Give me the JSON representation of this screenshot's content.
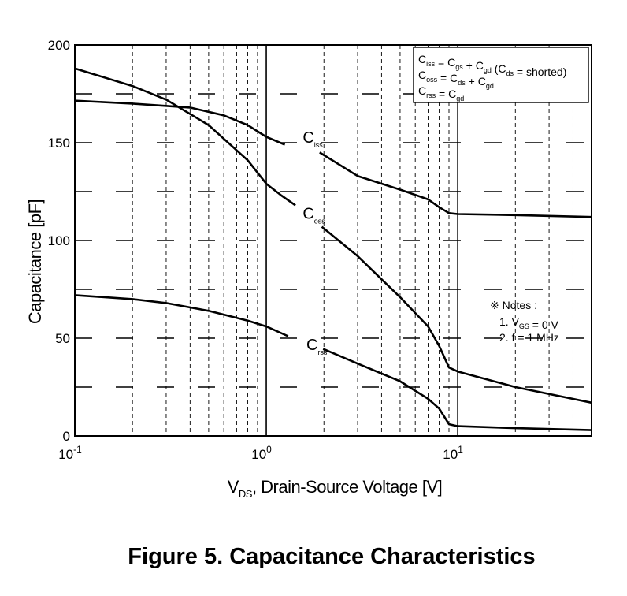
{
  "figure_caption": "Figure 5. Capacitance Characteristics",
  "chart_data": {
    "type": "line",
    "x_scale": "log",
    "xlim": [
      0.1,
      50
    ],
    "ylim": [
      0,
      200
    ],
    "grid": true,
    "xlabel": {
      "main": "V",
      "sub": "DS",
      "rest": ", Drain-Source Voltage [V]"
    },
    "ylabel": "Capacitance [pF]",
    "x_ticks": [
      {
        "value": 0.1,
        "base": "10",
        "exp": "-1"
      },
      {
        "value": 1,
        "base": "10",
        "exp": "0"
      },
      {
        "value": 10,
        "base": "10",
        "exp": "1"
      }
    ],
    "y_ticks": [
      {
        "value": 0,
        "label": "0"
      },
      {
        "value": 50,
        "label": "50"
      },
      {
        "value": 100,
        "label": "100"
      },
      {
        "value": 150,
        "label": "150"
      },
      {
        "value": 200,
        "label": "200"
      }
    ],
    "series": [
      {
        "name": "Ciss",
        "label_main": "C",
        "label_sub": "iss",
        "label_at": {
          "x": 1.55,
          "y": 150
        },
        "gap": [
          1.25,
          1.9
        ],
        "points": [
          [
            0.1,
            171.5
          ],
          [
            0.2,
            170
          ],
          [
            0.4,
            168
          ],
          [
            0.6,
            164
          ],
          [
            0.8,
            159
          ],
          [
            1,
            153
          ],
          [
            1.25,
            149
          ],
          [
            1.9,
            145
          ],
          [
            3,
            133
          ],
          [
            5,
            126
          ],
          [
            7,
            121
          ],
          [
            8,
            117
          ],
          [
            9,
            114
          ],
          [
            10,
            113.5
          ],
          [
            20,
            113
          ],
          [
            50,
            112
          ]
        ]
      },
      {
        "name": "Coss",
        "label_main": "C",
        "label_sub": "oss",
        "label_at": {
          "x": 1.55,
          "y": 111
        },
        "gap": [
          1.42,
          1.95
        ],
        "points": [
          [
            0.1,
            188
          ],
          [
            0.2,
            179
          ],
          [
            0.3,
            172
          ],
          [
            0.5,
            159
          ],
          [
            0.8,
            141
          ],
          [
            1,
            129
          ],
          [
            1.2,
            123
          ],
          [
            1.42,
            118
          ],
          [
            1.95,
            107
          ],
          [
            3,
            92
          ],
          [
            5,
            71
          ],
          [
            7,
            56
          ],
          [
            8,
            46
          ],
          [
            9,
            35
          ],
          [
            10,
            33
          ],
          [
            20,
            25
          ],
          [
            50,
            17
          ]
        ]
      },
      {
        "name": "Crss",
        "label_main": "C",
        "label_sub": "rss",
        "label_at": {
          "x": 1.62,
          "y": 44
        },
        "gap": [
          1.3,
          1.98
        ],
        "points": [
          [
            0.1,
            72
          ],
          [
            0.2,
            70
          ],
          [
            0.3,
            68
          ],
          [
            0.5,
            64
          ],
          [
            0.8,
            59
          ],
          [
            1,
            56
          ],
          [
            1.3,
            51
          ],
          [
            1.98,
            44.5
          ],
          [
            3,
            37
          ],
          [
            5,
            28
          ],
          [
            7,
            19
          ],
          [
            8,
            14
          ],
          [
            9,
            6
          ],
          [
            10,
            5
          ],
          [
            20,
            4
          ],
          [
            50,
            3
          ]
        ]
      }
    ],
    "legend": {
      "placement": "top-right",
      "lines": [
        [
          [
            "C",
            "iss"
          ],
          [
            " = "
          ],
          [
            "C",
            "gs"
          ],
          [
            " + "
          ],
          [
            "C",
            "gd"
          ],
          [
            " ("
          ],
          [
            "C",
            "ds"
          ],
          [
            " = shorted)"
          ]
        ],
        [
          [
            "C",
            "oss"
          ],
          [
            " = "
          ],
          [
            "C",
            "ds"
          ],
          [
            " + "
          ],
          [
            "C",
            "gd"
          ]
        ],
        [
          [
            "C",
            "rss"
          ],
          [
            " = "
          ],
          [
            "C",
            "gd"
          ]
        ]
      ]
    },
    "notes": {
      "title": "※ Notes :",
      "lines": [
        [
          [
            "1. V",
            "GS"
          ],
          [
            " = 0 V"
          ]
        ],
        [
          [
            "2. f = 1 MHz"
          ]
        ]
      ]
    }
  }
}
